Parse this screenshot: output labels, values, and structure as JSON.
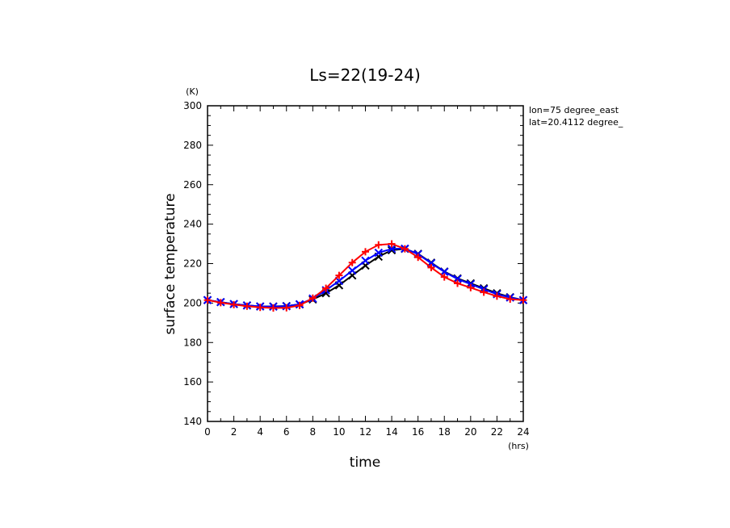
{
  "chart_data": {
    "type": "line",
    "title": "Ls=22(19-24)",
    "xlabel": "time",
    "ylabel": "surface temperature",
    "x_unit": "(hrs)",
    "y_unit": "(K)",
    "annotations": [
      "lon=75 degree_east",
      "lat=20.4112 degree_"
    ],
    "xlim": [
      0,
      24
    ],
    "ylim": [
      140,
      300
    ],
    "x_ticks": [
      0,
      2,
      4,
      6,
      8,
      10,
      12,
      14,
      16,
      18,
      20,
      22,
      24
    ],
    "y_ticks": [
      140,
      160,
      180,
      200,
      220,
      240,
      260,
      280,
      300
    ],
    "grid": false,
    "x": [
      0,
      1,
      2,
      3,
      4,
      5,
      6,
      7,
      8,
      9,
      10,
      11,
      12,
      13,
      14,
      15,
      16,
      17,
      18,
      19,
      20,
      21,
      22,
      23,
      24
    ],
    "series": [
      {
        "color": "#000000",
        "marker": "x",
        "values": [
          201.5,
          200.5,
          199.5,
          198.8,
          198.3,
          198.3,
          198.5,
          199.3,
          201.8,
          205,
          209,
          214,
          219,
          223.5,
          226.8,
          227.5,
          225,
          220.5,
          216,
          212.5,
          210,
          207.5,
          205,
          203,
          201.5
        ]
      },
      {
        "color": "#0000ff",
        "marker": "x",
        "values": [
          201.5,
          200.5,
          199.5,
          198.8,
          198.3,
          198.2,
          198.4,
          199.4,
          202.3,
          206.5,
          211.2,
          216.5,
          221.5,
          225.5,
          227.5,
          227.6,
          224.8,
          220.2,
          215.8,
          212.2,
          209.6,
          207,
          204.5,
          202.8,
          201.5
        ]
      },
      {
        "color": "#ff0000",
        "marker": "+",
        "values": [
          201.5,
          200.2,
          199.2,
          198.4,
          197.8,
          197.5,
          197.6,
          198.8,
          202.5,
          207.5,
          214,
          220.5,
          226,
          229.5,
          230,
          227.5,
          223.2,
          218,
          213.2,
          210,
          207.8,
          205.5,
          203.5,
          202,
          201.5
        ]
      }
    ]
  }
}
